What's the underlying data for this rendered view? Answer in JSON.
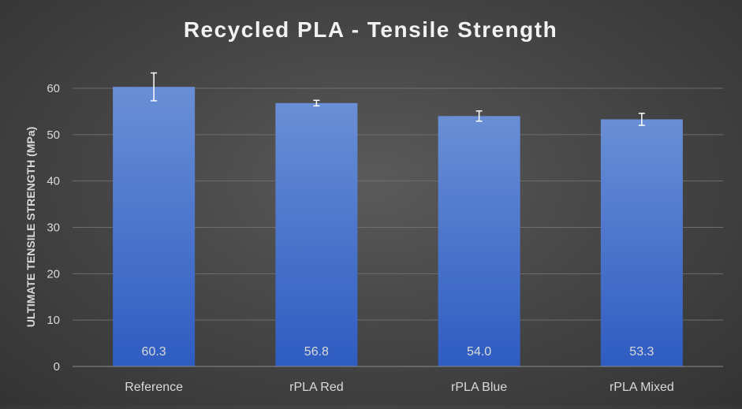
{
  "chart_data": {
    "type": "bar",
    "title": "Recycled PLA - Tensile Strength",
    "xlabel": "",
    "ylabel": "ULTIMATE TENSILE STRENGTH (MPa)",
    "categories": [
      "Reference",
      "rPLA Red",
      "rPLA Blue",
      "rPLA Mixed"
    ],
    "values": [
      60.3,
      56.8,
      54.0,
      53.3
    ],
    "value_labels": [
      "60.3",
      "56.8",
      "54.0",
      "53.3"
    ],
    "error_bars": [
      3.0,
      0.6,
      1.1,
      1.3
    ],
    "ylim": [
      0,
      60
    ],
    "yticks": [
      0,
      10,
      20,
      30,
      40,
      50,
      60
    ],
    "grid": true,
    "legend": "none",
    "colors": {
      "bar_top": "#6a8fd6",
      "bar_bottom": "#2e5cc1",
      "text": "#d9d9d9",
      "title": "#f2f2f2",
      "grid": "#6e6e6e",
      "error_bar": "#ffffff"
    }
  }
}
